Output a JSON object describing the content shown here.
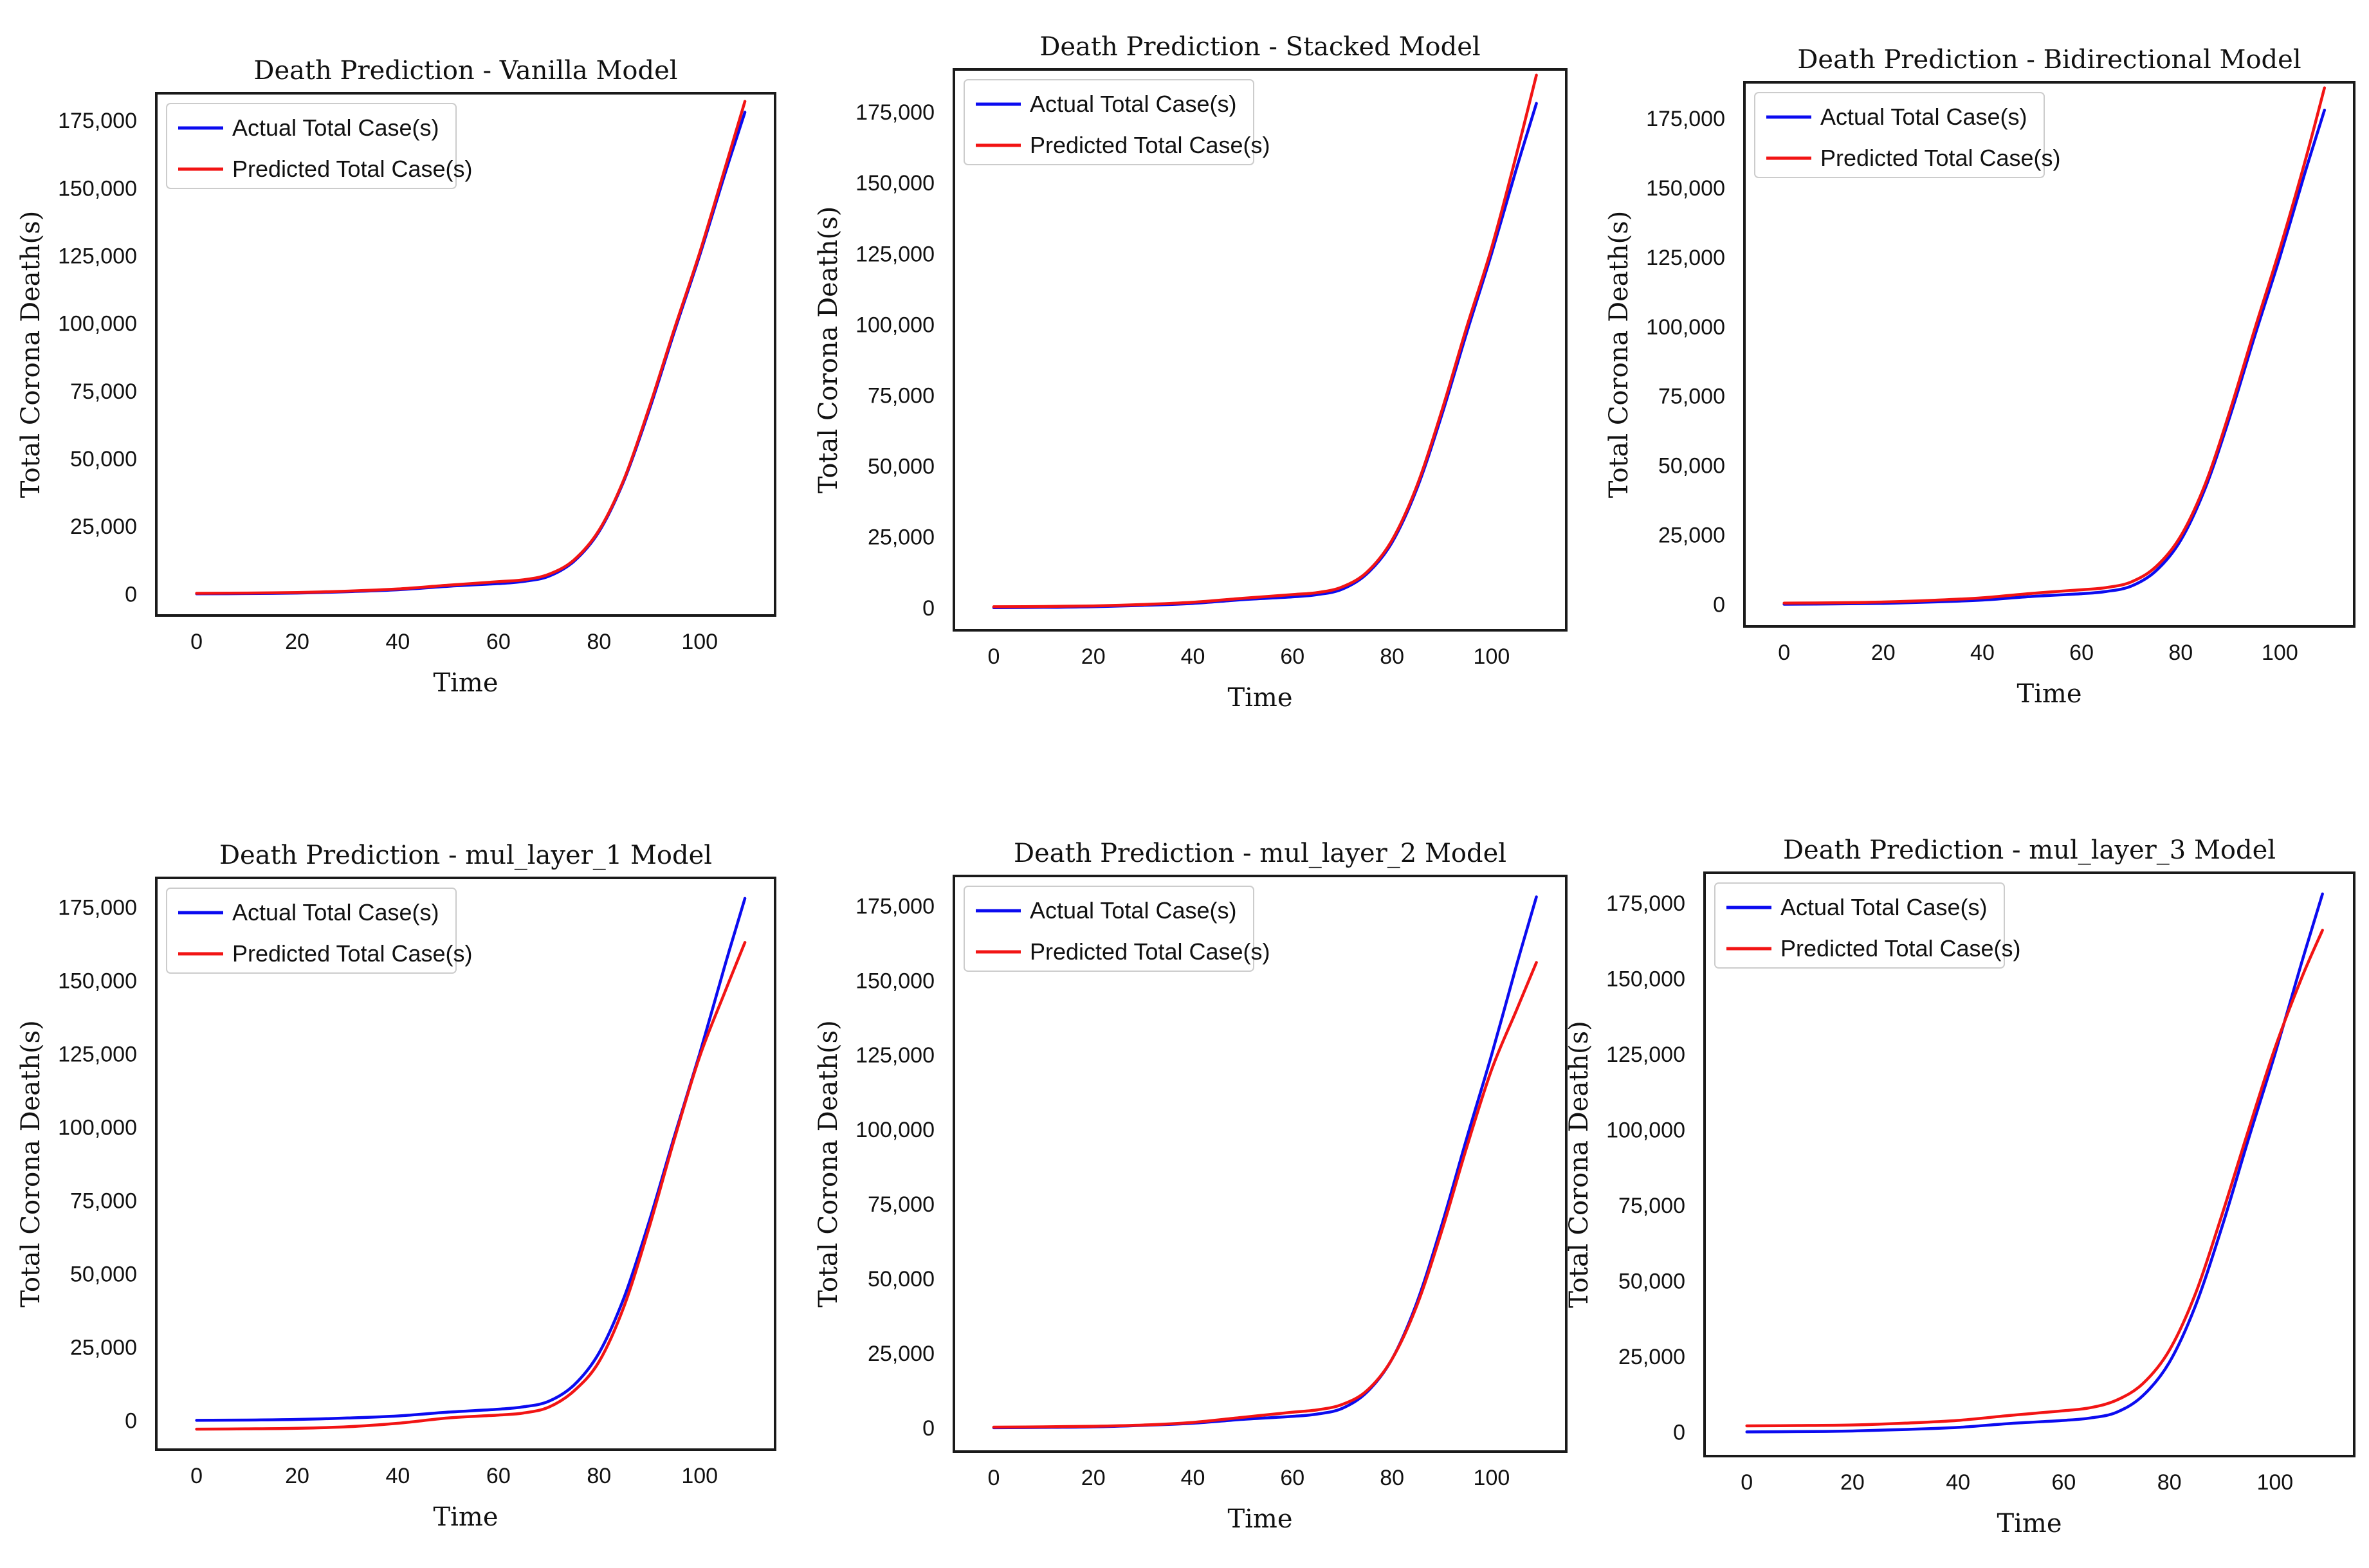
{
  "colors": {
    "actual": "#0b0bf0",
    "predicted": "#f21414",
    "frame": "#1a1a1a",
    "text": "#111111"
  },
  "chart_data": [
    {
      "type": "line",
      "title": "Death Prediction - Vanilla Model",
      "xlabel": "Time",
      "ylabel": "Total Corona Death(s)",
      "xlim": [
        -8,
        115
      ],
      "ylim": [
        -8000,
        185000
      ],
      "xticks": [
        0,
        20,
        40,
        60,
        80,
        100
      ],
      "yticks": [
        0,
        25000,
        50000,
        75000,
        100000,
        125000,
        150000,
        175000
      ],
      "ytick_labels": [
        "0",
        "25,000",
        "50,000",
        "75,000",
        "100,000",
        "125,000",
        "150,000",
        "175,000"
      ],
      "xtick_labels": [
        "0",
        "20",
        "40",
        "60",
        "80",
        "100"
      ],
      "grid": false,
      "legend": "top-left",
      "series": [
        {
          "name": "Actual Total Case(s)",
          "color": "#0b0bf0",
          "x": [
            0,
            10,
            20,
            30,
            40,
            50,
            60,
            65,
            70,
            75,
            80,
            85,
            90,
            95,
            100,
            105,
            109
          ],
          "y": [
            0,
            100,
            300,
            800,
            1500,
            2800,
            3800,
            4600,
            6500,
            12000,
            23000,
            42000,
            68000,
            97000,
            125000,
            155000,
            178000
          ]
        },
        {
          "name": "Predicted Total Case(s)",
          "color": "#f21414",
          "x": [
            0,
            10,
            20,
            30,
            40,
            50,
            60,
            65,
            70,
            75,
            80,
            85,
            90,
            95,
            100,
            105,
            109
          ],
          "y": [
            200,
            300,
            500,
            1000,
            1800,
            3200,
            4500,
            5200,
            7200,
            12500,
            23500,
            42500,
            69000,
            98000,
            126000,
            157000,
            182000
          ]
        }
      ]
    },
    {
      "type": "line",
      "title": "Death Prediction - Stacked Model",
      "xlabel": "Time",
      "ylabel": "Total Corona Death(s)",
      "xlim": [
        -8,
        115
      ],
      "ylim": [
        -8000,
        190000
      ],
      "xticks": [
        0,
        20,
        40,
        60,
        80,
        100
      ],
      "yticks": [
        0,
        25000,
        50000,
        75000,
        100000,
        125000,
        150000,
        175000
      ],
      "ytick_labels": [
        "0",
        "25,000",
        "50,000",
        "75,000",
        "100,000",
        "125,000",
        "150,000",
        "175,000"
      ],
      "xtick_labels": [
        "0",
        "20",
        "40",
        "60",
        "80",
        "100"
      ],
      "grid": false,
      "legend": "top-left",
      "series": [
        {
          "name": "Actual Total Case(s)",
          "color": "#0b0bf0",
          "x": [
            0,
            10,
            20,
            30,
            40,
            50,
            60,
            65,
            70,
            75,
            80,
            85,
            90,
            95,
            100,
            105,
            109
          ],
          "y": [
            0,
            100,
            300,
            800,
            1500,
            2800,
            3800,
            4600,
            6500,
            12000,
            23000,
            42000,
            68000,
            97000,
            125000,
            155000,
            178000
          ]
        },
        {
          "name": "Predicted Total Case(s)",
          "color": "#f21414",
          "x": [
            0,
            10,
            20,
            30,
            40,
            50,
            60,
            65,
            70,
            75,
            80,
            85,
            90,
            95,
            100,
            105,
            109
          ],
          "y": [
            300,
            400,
            600,
            1100,
            1900,
            3300,
            4600,
            5300,
            7300,
            12600,
            23800,
            43000,
            69500,
            99000,
            127000,
            160000,
            188000
          ]
        }
      ]
    },
    {
      "type": "line",
      "title": "Death Prediction - Bidirectional Model",
      "xlabel": "Time",
      "ylabel": "Total Corona Death(s)",
      "xlim": [
        -8,
        115
      ],
      "ylim": [
        -8000,
        188000
      ],
      "xticks": [
        0,
        20,
        40,
        60,
        80,
        100
      ],
      "yticks": [
        0,
        25000,
        50000,
        75000,
        100000,
        125000,
        150000,
        175000
      ],
      "ytick_labels": [
        "0",
        "25,000",
        "50,000",
        "75,000",
        "100,000",
        "125,000",
        "150,000",
        "175,000"
      ],
      "xtick_labels": [
        "0",
        "20",
        "40",
        "60",
        "80",
        "100"
      ],
      "grid": false,
      "legend": "top-left",
      "series": [
        {
          "name": "Actual Total Case(s)",
          "color": "#0b0bf0",
          "x": [
            0,
            10,
            20,
            30,
            40,
            50,
            60,
            65,
            70,
            75,
            80,
            85,
            90,
            95,
            100,
            105,
            109
          ],
          "y": [
            0,
            100,
            300,
            800,
            1500,
            2800,
            3800,
            4600,
            6500,
            12000,
            23000,
            42000,
            68000,
            97000,
            125000,
            155000,
            178000
          ]
        },
        {
          "name": "Predicted Total Case(s)",
          "color": "#f21414",
          "x": [
            0,
            10,
            20,
            30,
            40,
            50,
            60,
            65,
            70,
            75,
            80,
            85,
            90,
            95,
            100,
            105,
            109
          ],
          "y": [
            400,
            500,
            800,
            1400,
            2300,
            3900,
            5200,
            6000,
            8000,
            13500,
            24500,
            43500,
            70000,
            99500,
            128000,
            159000,
            186000
          ]
        }
      ]
    },
    {
      "type": "line",
      "title": "Death Prediction - mul_layer_1 Model",
      "xlabel": "Time",
      "ylabel": "Total Corona Death(s)",
      "xlim": [
        -8,
        115
      ],
      "ylim": [
        -10000,
        185000
      ],
      "xticks": [
        0,
        20,
        40,
        60,
        80,
        100
      ],
      "yticks": [
        0,
        25000,
        50000,
        75000,
        100000,
        125000,
        150000,
        175000
      ],
      "ytick_labels": [
        "0",
        "25,000",
        "50,000",
        "75,000",
        "100,000",
        "125,000",
        "150,000",
        "175,000"
      ],
      "xtick_labels": [
        "0",
        "20",
        "40",
        "60",
        "80",
        "100"
      ],
      "grid": false,
      "legend": "top-left",
      "series": [
        {
          "name": "Actual Total Case(s)",
          "color": "#0b0bf0",
          "x": [
            0,
            10,
            20,
            30,
            40,
            50,
            60,
            65,
            70,
            75,
            80,
            85,
            90,
            95,
            100,
            105,
            109
          ],
          "y": [
            0,
            100,
            300,
            800,
            1500,
            2800,
            3800,
            4600,
            6500,
            12000,
            23000,
            42000,
            68000,
            97000,
            125000,
            155000,
            178000
          ]
        },
        {
          "name": "Predicted Total Case(s)",
          "color": "#f21414",
          "x": [
            0,
            10,
            20,
            30,
            40,
            50,
            60,
            65,
            70,
            75,
            80,
            85,
            90,
            95,
            100,
            105,
            109
          ],
          "y": [
            -3000,
            -2900,
            -2700,
            -2200,
            -1000,
            800,
            1800,
            2500,
            4500,
            10000,
            20000,
            39000,
            66000,
            96000,
            124000,
            146000,
            163000
          ]
        }
      ]
    },
    {
      "type": "line",
      "title": "Death Prediction - mul_layer_2 Model",
      "xlabel": "Time",
      "ylabel": "Total Corona Death(s)",
      "xlim": [
        -8,
        115
      ],
      "ylim": [
        -8000,
        185000
      ],
      "xticks": [
        0,
        20,
        40,
        60,
        80,
        100
      ],
      "yticks": [
        0,
        25000,
        50000,
        75000,
        100000,
        125000,
        150000,
        175000
      ],
      "ytick_labels": [
        "0",
        "25,000",
        "50,000",
        "75,000",
        "100,000",
        "125,000",
        "150,000",
        "175,000"
      ],
      "xtick_labels": [
        "0",
        "20",
        "40",
        "60",
        "80",
        "100"
      ],
      "grid": false,
      "legend": "top-left",
      "series": [
        {
          "name": "Actual Total Case(s)",
          "color": "#0b0bf0",
          "x": [
            0,
            10,
            20,
            30,
            40,
            50,
            60,
            65,
            70,
            75,
            80,
            85,
            90,
            95,
            100,
            105,
            109
          ],
          "y": [
            0,
            100,
            300,
            800,
            1500,
            2800,
            3800,
            4600,
            6500,
            12000,
            23000,
            42000,
            68000,
            97000,
            125000,
            155000,
            178000
          ]
        },
        {
          "name": "Predicted Total Case(s)",
          "color": "#f21414",
          "x": [
            0,
            10,
            20,
            30,
            40,
            50,
            60,
            65,
            70,
            75,
            80,
            85,
            90,
            95,
            100,
            105,
            109
          ],
          "y": [
            200,
            300,
            500,
            900,
            1800,
            3500,
            5200,
            6000,
            7800,
            12500,
            23000,
            41000,
            66000,
            94000,
            120000,
            140000,
            156000
          ]
        }
      ]
    },
    {
      "type": "line",
      "title": "Death Prediction - mul_layer_3 Model",
      "xlabel": "Time",
      "ylabel": "Total Corona Death(s)",
      "xlim": [
        -8,
        115
      ],
      "ylim": [
        -8000,
        185000
      ],
      "xticks": [
        0,
        20,
        40,
        60,
        80,
        100
      ],
      "yticks": [
        0,
        25000,
        50000,
        75000,
        100000,
        125000,
        150000,
        175000
      ],
      "ytick_labels": [
        "0",
        "25,000",
        "50,000",
        "75,000",
        "100,000",
        "125,000",
        "150,000",
        "175,000"
      ],
      "xtick_labels": [
        "0",
        "20",
        "40",
        "60",
        "80",
        "100"
      ],
      "grid": false,
      "legend": "top-left",
      "series": [
        {
          "name": "Actual Total Case(s)",
          "color": "#0b0bf0",
          "x": [
            0,
            10,
            20,
            30,
            40,
            50,
            60,
            65,
            70,
            75,
            80,
            85,
            90,
            95,
            100,
            105,
            109
          ],
          "y": [
            0,
            100,
            300,
            800,
            1500,
            2800,
            3800,
            4600,
            6500,
            12000,
            23000,
            42000,
            68000,
            97000,
            125000,
            155000,
            178000
          ]
        },
        {
          "name": "Predicted Total Case(s)",
          "color": "#f21414",
          "x": [
            0,
            10,
            20,
            30,
            40,
            50,
            60,
            65,
            70,
            75,
            80,
            85,
            90,
            95,
            100,
            105,
            109
          ],
          "y": [
            2000,
            2100,
            2300,
            2900,
            3800,
            5500,
            7000,
            8000,
            10500,
            16000,
            27000,
            46000,
            72000,
            100000,
            127000,
            150000,
            166000
          ]
        }
      ]
    }
  ]
}
